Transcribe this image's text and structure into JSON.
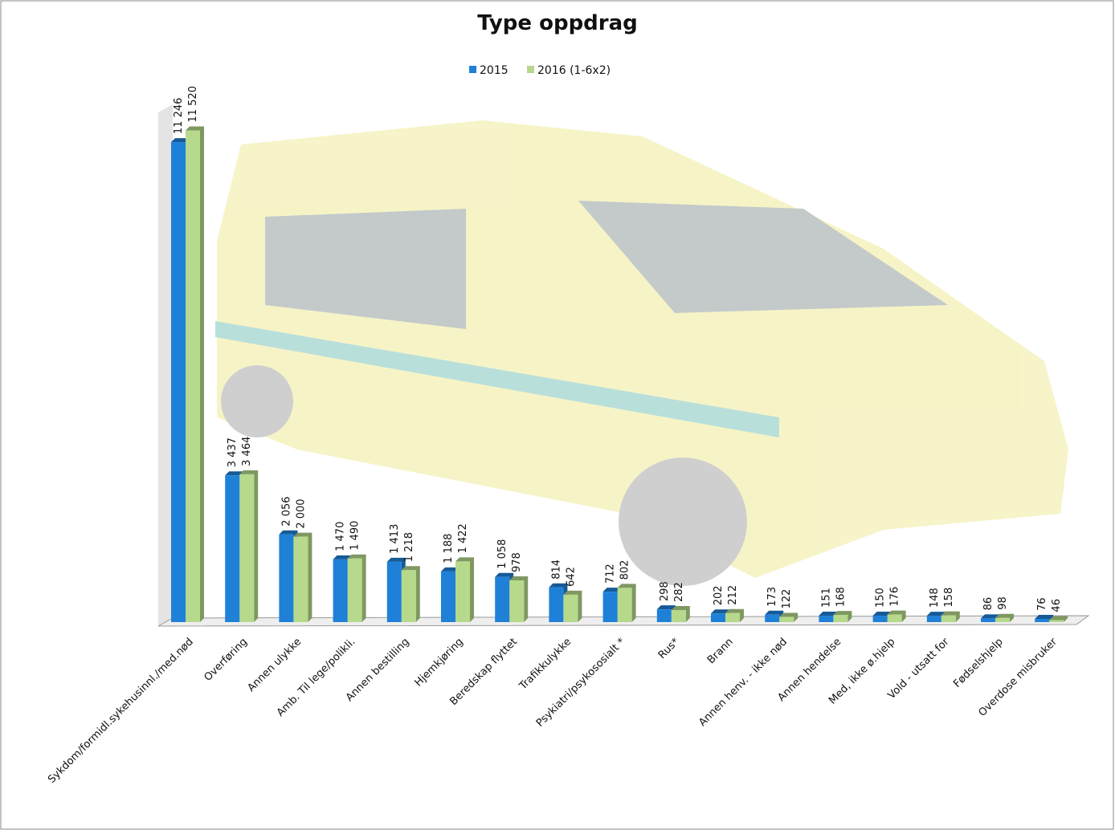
{
  "chart_data": {
    "type": "bar3d",
    "title": "Type oppdrag",
    "categories": [
      "Sykdom/formidl.sykehusinnl./med.nød",
      "Overføring",
      "Annen ulykke",
      "Amb. Til lege/polikli.",
      "Annen bestilling",
      "Hjemkjøring",
      "Beredskap flyttet",
      "Trafikkulykke",
      "Psykiatri/psykososialt *",
      "Rus*",
      "Brann",
      "Annen henv. - ikke nød",
      "Annen hendelse",
      "Med, ikke ø.hjelp",
      "Vold - utsatt for",
      "Fødselshjelp",
      "Overdose misbruker"
    ],
    "series": [
      {
        "name": "2015",
        "color": "#1f80d8",
        "values": [
          11246,
          3437,
          2056,
          1470,
          1413,
          1188,
          1058,
          814,
          712,
          298,
          202,
          173,
          151,
          150,
          148,
          86,
          76
        ],
        "value_labels": [
          "11 246",
          "3 437",
          "2 056",
          "1 470",
          "1 413",
          "1 188",
          "1 058",
          "814",
          "712",
          "298",
          "202",
          "173",
          "151",
          "150",
          "148",
          "86",
          "76"
        ]
      },
      {
        "name": "2016 (1-6x2)",
        "color": "#b6d98c",
        "values": [
          11520,
          3464,
          2000,
          1490,
          1218,
          1422,
          978,
          642,
          802,
          282,
          212,
          122,
          168,
          176,
          158,
          98,
          46
        ],
        "value_labels": [
          "11 520",
          "3 464",
          "2 000",
          "1 490",
          "1 218",
          "1 422",
          "978",
          "642",
          "802",
          "282",
          "212",
          "122",
          "168",
          "176",
          "158",
          "98",
          "46"
        ]
      }
    ],
    "ylim": [
      0,
      12000
    ],
    "legend": "top"
  }
}
